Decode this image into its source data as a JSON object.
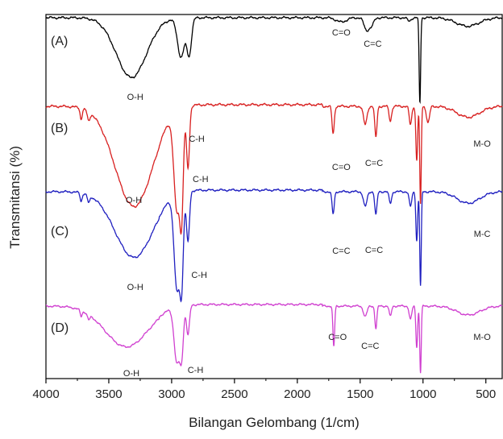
{
  "chart_data": {
    "type": "line",
    "title": "",
    "xlabel": "Bilangan Gelombang (1/cm)",
    "ylabel": "Transmitansi (%)",
    "xlim": [
      4000,
      370
    ],
    "x_reversed": true,
    "x_ticks": [
      {
        "value": 4000,
        "label": "4000"
      },
      {
        "value": 3500,
        "label": "3500"
      },
      {
        "value": 3000,
        "label": "3000"
      },
      {
        "value": 2500,
        "label": "2500"
      },
      {
        "value": 2000,
        "label": "2000"
      },
      {
        "value": 1500,
        "label": "1500"
      },
      {
        "value": 1000,
        "label": "1000"
      },
      {
        "value": 500,
        "label": "500"
      }
    ],
    "y_ticks_shown": false,
    "grid": false,
    "series": [
      {
        "label": "(A)",
        "color": "#000000",
        "baseline": 0,
        "peaks": [
          {
            "center": 3320,
            "depth": 70,
            "width": 120
          },
          {
            "center": 2925,
            "depth": 46,
            "width": 28
          },
          {
            "center": 2860,
            "depth": 42,
            "width": 18
          },
          {
            "center": 1650,
            "depth": 5,
            "width": 40
          },
          {
            "center": 1450,
            "depth": 14,
            "width": 20
          },
          {
            "center": 1410,
            "depth": 9,
            "width": 18
          },
          {
            "center": 1110,
            "depth": 4,
            "width": 14
          },
          {
            "center": 1025,
            "depth": 100,
            "width": 6
          },
          {
            "center": 645,
            "depth": 10,
            "width": 90
          }
        ],
        "annotations": [
          {
            "text": "O-H",
            "x": 3290
          },
          {
            "text": "C-H",
            "x": 2800
          },
          {
            "text": "C=O",
            "x": 1650
          },
          {
            "text": "C=C",
            "x": 1400
          }
        ]
      },
      {
        "label": "(B)",
        "color": "#d82020",
        "baseline": 100,
        "peaks": [
          {
            "center": 3720,
            "depth": 12,
            "width": 8
          },
          {
            "center": 3660,
            "depth": 10,
            "width": 10
          },
          {
            "center": 3300,
            "depth": 110,
            "width": 150
          },
          {
            "center": 2958,
            "depth": 108,
            "width": 24
          },
          {
            "center": 2920,
            "depth": 100,
            "width": 14
          },
          {
            "center": 2870,
            "depth": 68,
            "width": 12
          },
          {
            "center": 1715,
            "depth": 30,
            "width": 9
          },
          {
            "center": 1460,
            "depth": 20,
            "width": 14
          },
          {
            "center": 1375,
            "depth": 34,
            "width": 9
          },
          {
            "center": 1260,
            "depth": 16,
            "width": 10
          },
          {
            "center": 1100,
            "depth": 20,
            "width": 10
          },
          {
            "center": 1050,
            "depth": 60,
            "width": 7
          },
          {
            "center": 1020,
            "depth": 108,
            "width": 6
          },
          {
            "center": 960,
            "depth": 18,
            "width": 12
          },
          {
            "center": 640,
            "depth": 12,
            "width": 90
          }
        ],
        "annotations": [
          {
            "text": "O-H",
            "x": 3300
          },
          {
            "text": "C-H",
            "x": 2770
          },
          {
            "text": "C=O",
            "x": 1650
          },
          {
            "text": "C=C",
            "x": 1390
          },
          {
            "text": "M-O",
            "x": 530
          }
        ]
      },
      {
        "label": "(C)",
        "color": "#2020c0",
        "baseline": 200,
        "peaks": [
          {
            "center": 3720,
            "depth": 10,
            "width": 8
          },
          {
            "center": 3660,
            "depth": 9,
            "width": 10
          },
          {
            "center": 3300,
            "depth": 80,
            "width": 150
          },
          {
            "center": 2958,
            "depth": 115,
            "width": 22
          },
          {
            "center": 2920,
            "depth": 100,
            "width": 14
          },
          {
            "center": 2870,
            "depth": 62,
            "width": 12
          },
          {
            "center": 1715,
            "depth": 27,
            "width": 9
          },
          {
            "center": 1460,
            "depth": 18,
            "width": 14
          },
          {
            "center": 1375,
            "depth": 28,
            "width": 9
          },
          {
            "center": 1260,
            "depth": 14,
            "width": 10
          },
          {
            "center": 1100,
            "depth": 18,
            "width": 10
          },
          {
            "center": 1050,
            "depth": 60,
            "width": 7
          },
          {
            "center": 1020,
            "depth": 115,
            "width": 6
          },
          {
            "center": 640,
            "depth": 14,
            "width": 90
          }
        ],
        "annotations": [
          {
            "text": "O-H",
            "x": 3290
          },
          {
            "text": "C-H",
            "x": 2780
          },
          {
            "text": "C=C",
            "x": 1650
          },
          {
            "text": "C=C",
            "x": 1390
          },
          {
            "text": "M-C",
            "x": 530
          }
        ]
      },
      {
        "label": "(D)",
        "color": "#d040d0",
        "baseline": 300,
        "peaks": [
          {
            "center": 3720,
            "depth": 8,
            "width": 8
          },
          {
            "center": 3660,
            "depth": 7,
            "width": 10
          },
          {
            "center": 3360,
            "depth": 55,
            "width": 170
          },
          {
            "center": 2958,
            "depth": 75,
            "width": 22
          },
          {
            "center": 2920,
            "depth": 60,
            "width": 14
          },
          {
            "center": 2870,
            "depth": 40,
            "width": 12
          },
          {
            "center": 1710,
            "depth": 55,
            "width": 7
          },
          {
            "center": 1460,
            "depth": 14,
            "width": 14
          },
          {
            "center": 1375,
            "depth": 30,
            "width": 8
          },
          {
            "center": 1260,
            "depth": 14,
            "width": 9
          },
          {
            "center": 1100,
            "depth": 18,
            "width": 10
          },
          {
            "center": 1050,
            "depth": 55,
            "width": 7
          },
          {
            "center": 1020,
            "depth": 90,
            "width": 6
          },
          {
            "center": 640,
            "depth": 12,
            "width": 90
          }
        ],
        "annotations": [
          {
            "text": "O-H",
            "x": 3320
          },
          {
            "text": "C-H",
            "x": 2810
          },
          {
            "text": "C=O",
            "x": 1680
          },
          {
            "text": "C=C",
            "x": 1420
          },
          {
            "text": "M-O",
            "x": 530
          }
        ]
      }
    ]
  }
}
